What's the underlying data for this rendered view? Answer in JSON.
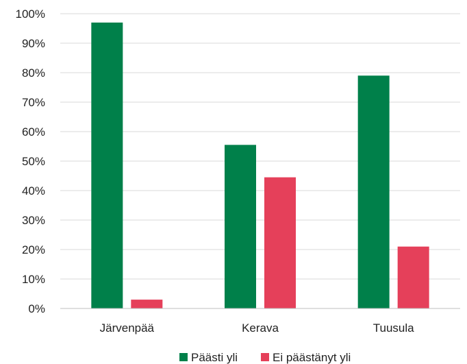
{
  "chart_data": {
    "type": "bar",
    "title": "",
    "xlabel": "",
    "ylabel": "",
    "categories": [
      "Järvenpää",
      "Kerava",
      "Tuusula"
    ],
    "series": [
      {
        "name": "Päästi yli",
        "color": "#00804a",
        "values": [
          97,
          55.5,
          79
        ]
      },
      {
        "name": "Ei päästänyt yli",
        "color": "#e5405a",
        "values": [
          3,
          44.5,
          21
        ]
      }
    ],
    "ylim": [
      0,
      100
    ],
    "yticks": [
      "0%",
      "10%",
      "20%",
      "30%",
      "40%",
      "50%",
      "60%",
      "70%",
      "80%",
      "90%",
      "100%"
    ],
    "grid": true,
    "legend": "bottom"
  }
}
